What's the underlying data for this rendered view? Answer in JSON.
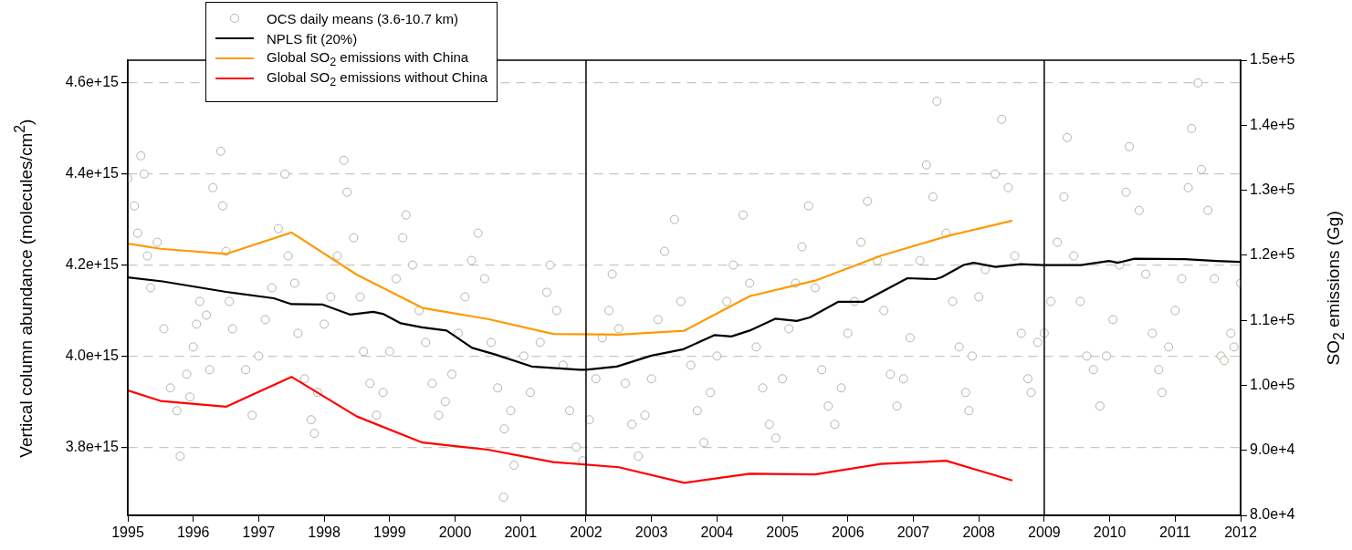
{
  "chart_data": {
    "type": "line",
    "ylabel": "Vertical column abundance (molecules/cm$^{2}$)",
    "y2label": "SO$_{2}$ emissions  (Gg)",
    "xlim": [
      1995,
      2012
    ],
    "xticks": [
      1995,
      1996,
      1997,
      1998,
      1999,
      2000,
      2001,
      2002,
      2003,
      2004,
      2005,
      2006,
      2007,
      2008,
      2009,
      2010,
      2011,
      2012
    ],
    "ylim": [
      3650000000000000.0,
      4650000000000000.0
    ],
    "yticks": [
      {
        "value": 3800000000000000.0,
        "label": "3.8e+15"
      },
      {
        "value": 4000000000000000.0,
        "label": "4.0e+15"
      },
      {
        "value": 4200000000000000.0,
        "label": "4.2e+15"
      },
      {
        "value": 4400000000000000.0,
        "label": "4.4e+15"
      },
      {
        "value": 4600000000000000.0,
        "label": "4.6e+15"
      }
    ],
    "y2lim": [
      80000,
      150000
    ],
    "y2ticks": [
      {
        "value": 80000,
        "label": "8.0e+4"
      },
      {
        "value": 90000,
        "label": "9.0e+4"
      },
      {
        "value": 100000,
        "label": "1.0e+5"
      },
      {
        "value": 110000,
        "label": "1.1e+5"
      },
      {
        "value": 120000,
        "label": "1.2e+5"
      },
      {
        "value": 130000,
        "label": "1.3e+5"
      },
      {
        "value": 140000,
        "label": "1.4e+5"
      },
      {
        "value": 150000,
        "label": "1.5e+5"
      }
    ],
    "grid": "y",
    "legend": "top left",
    "marker": "none",
    "line_style": "solid",
    "ref_lines": [
      {
        "axis": "x",
        "value": 2002,
        "color": "#000000"
      },
      {
        "axis": "x",
        "value": 2009,
        "color": "#000000"
      }
    ],
    "series": [
      {
        "name": "OCS daily means (3.6-10.7 km)",
        "type": "scatter",
        "marker": "circle",
        "color": "#b4b4a8",
        "x": [
          1995.0,
          1995.1,
          1995.15,
          1995.2,
          1995.25,
          1995.3,
          1995.35,
          1995.45,
          1995.55,
          1995.65,
          1995.75,
          1995.8,
          1995.9,
          1995.95,
          1996.0,
          1996.05,
          1996.1,
          1996.2,
          1996.25,
          1996.3,
          1996.42,
          1996.45,
          1996.5,
          1996.55,
          1996.6,
          1996.8,
          1996.9,
          1997.0,
          1997.1,
          1997.2,
          1997.3,
          1997.4,
          1997.45,
          1997.55,
          1997.6,
          1997.7,
          1997.8,
          1997.85,
          1997.9,
          1998.0,
          1998.1,
          1998.2,
          1998.3,
          1998.35,
          1998.45,
          1998.55,
          1998.6,
          1998.7,
          1998.8,
          1998.9,
          1999.0,
          1999.1,
          1999.2,
          1999.25,
          1999.35,
          1999.45,
          1999.55,
          1999.65,
          1999.75,
          1999.85,
          1999.95,
          2000.05,
          2000.15,
          2000.25,
          2000.35,
          2000.45,
          2000.55,
          2000.65,
          2000.74,
          2000.75,
          2000.85,
          2000.9,
          2001.05,
          2001.15,
          2001.3,
          2001.4,
          2001.45,
          2001.55,
          2001.65,
          2001.75,
          2001.85,
          2001.95,
          2002.05,
          2002.15,
          2002.25,
          2002.35,
          2002.4,
          2002.5,
          2002.6,
          2002.7,
          2002.8,
          2002.9,
          2003.0,
          2003.1,
          2003.2,
          2003.35,
          2003.45,
          2003.6,
          2003.7,
          2003.8,
          2003.9,
          2004.0,
          2004.15,
          2004.25,
          2004.4,
          2004.5,
          2004.6,
          2004.7,
          2004.8,
          2004.9,
          2005.0,
          2005.1,
          2005.2,
          2005.3,
          2005.4,
          2005.5,
          2005.6,
          2005.7,
          2005.8,
          2005.9,
          2006.0,
          2006.1,
          2006.2,
          2006.3,
          2006.45,
          2006.55,
          2006.65,
          2006.75,
          2006.85,
          2006.95,
          2007.1,
          2007.2,
          2007.3,
          2007.36,
          2007.5,
          2007.6,
          2007.7,
          2007.8,
          2007.85,
          2007.9,
          2008.0,
          2008.1,
          2008.25,
          2008.35,
          2008.45,
          2008.55,
          2008.65,
          2008.75,
          2008.8,
          2008.9,
          2009.0,
          2009.1,
          2009.2,
          2009.3,
          2009.35,
          2009.45,
          2009.55,
          2009.65,
          2009.75,
          2009.85,
          2009.95,
          2010.05,
          2010.15,
          2010.25,
          2010.3,
          2010.45,
          2010.55,
          2010.65,
          2010.75,
          2010.8,
          2010.9,
          2011.0,
          2011.1,
          2011.2,
          2011.25,
          2011.35,
          2011.4,
          2011.5,
          2011.6,
          2011.7,
          2011.75,
          2011.85,
          2011.9,
          2012.0
        ],
        "values": [
          4390000000000000.0,
          4330000000000000.0,
          4270000000000000.0,
          4440000000000000.0,
          4400000000000000.0,
          4220000000000000.0,
          4150000000000000.0,
          4250000000000000.0,
          4060000000000000.0,
          3930000000000000.0,
          3880000000000000.0,
          3780000000000000.0,
          3960000000000000.0,
          3910000000000000.0,
          4020000000000000.0,
          4070000000000000.0,
          4120000000000000.0,
          4090000000000000.0,
          3970000000000000.0,
          4370000000000000.0,
          4450000000000000.0,
          4330000000000000.0,
          4230000000000000.0,
          4120000000000000.0,
          4060000000000000.0,
          3970000000000000.0,
          3870000000000000.0,
          4000000000000000.0,
          4080000000000000.0,
          4150000000000000.0,
          4280000000000000.0,
          4400000000000000.0,
          4220000000000000.0,
          4160000000000000.0,
          4050000000000000.0,
          3950000000000000.0,
          3860000000000000.0,
          3830000000000000.0,
          3920000000000000.0,
          4070000000000000.0,
          4130000000000000.0,
          4220000000000000.0,
          4430000000000000.0,
          4360000000000000.0,
          4260000000000000.0,
          4130000000000000.0,
          4010000000000000.0,
          3940000000000000.0,
          3870000000000000.0,
          3920000000000000.0,
          4010000000000000.0,
          4170000000000000.0,
          4260000000000000.0,
          4310000000000000.0,
          4200000000000000.0,
          4100000000000000.0,
          4030000000000000.0,
          3940000000000000.0,
          3870000000000000.0,
          3900000000000000.0,
          3960000000000000.0,
          4050000000000000.0,
          4130000000000000.0,
          4210000000000000.0,
          4270000000000000.0,
          4170000000000000.0,
          4030000000000000.0,
          3930000000000000.0,
          3690000000000000.0,
          3840000000000000.0,
          3880000000000000.0,
          3760000000000000.0,
          4000000000000000.0,
          3920000000000000.0,
          4030000000000000.0,
          4140000000000000.0,
          4200000000000000.0,
          4100000000000000.0,
          3980000000000000.0,
          3880000000000000.0,
          3800000000000000.0,
          3770000000000000.0,
          3860000000000000.0,
          3950000000000000.0,
          4040000000000000.0,
          4100000000000000.0,
          4180000000000000.0,
          4060000000000000.0,
          3940000000000000.0,
          3850000000000000.0,
          3780000000000000.0,
          3870000000000000.0,
          3950000000000000.0,
          4080000000000000.0,
          4230000000000000.0,
          4300000000000000.0,
          4120000000000000.0,
          3980000000000000.0,
          3880000000000000.0,
          3810000000000000.0,
          3920000000000000.0,
          4000000000000000.0,
          4120000000000000.0,
          4200000000000000.0,
          4310000000000000.0,
          4160000000000000.0,
          4020000000000000.0,
          3930000000000000.0,
          3850000000000000.0,
          3820000000000000.0,
          3950000000000000.0,
          4060000000000000.0,
          4160000000000000.0,
          4240000000000000.0,
          4330000000000000.0,
          4150000000000000.0,
          3970000000000000.0,
          3890000000000000.0,
          3850000000000000.0,
          3930000000000000.0,
          4050000000000000.0,
          4120000000000000.0,
          4250000000000000.0,
          4340000000000000.0,
          4210000000000000.0,
          4100000000000000.0,
          3960000000000000.0,
          3890000000000000.0,
          3950000000000000.0,
          4040000000000000.0,
          4210000000000000.0,
          4420000000000000.0,
          4350000000000000.0,
          4560000000000000.0,
          4270000000000000.0,
          4120000000000000.0,
          4020000000000000.0,
          3920000000000000.0,
          3880000000000000.0,
          4000000000000000.0,
          4130000000000000.0,
          4190000000000000.0,
          4400000000000000.0,
          4520000000000000.0,
          4370000000000000.0,
          4220000000000000.0,
          4050000000000000.0,
          3950000000000000.0,
          3920000000000000.0,
          4030000000000000.0,
          4050000000000000.0,
          4120000000000000.0,
          4250000000000000.0,
          4350000000000000.0,
          4480000000000000.0,
          4220000000000000.0,
          4120000000000000.0,
          4000000000000000.0,
          3970000000000000.0,
          3890000000000000.0,
          4000000000000000.0,
          4080000000000000.0,
          4200000000000000.0,
          4360000000000000.0,
          4460000000000000.0,
          4320000000000000.0,
          4180000000000000.0,
          4050000000000000.0,
          3970000000000000.0,
          3920000000000000.0,
          4020000000000000.0,
          4100000000000000.0,
          4170000000000000.0,
          4370000000000000.0,
          4500000000000000.0,
          4600000000000000.0,
          4410000000000000.0,
          4320000000000000.0,
          4170000000000000.0,
          4000000000000000.0,
          3990000000000000.0,
          4050000000000000.0,
          4020000000000000.0,
          4160000000000000.0
        ]
      },
      {
        "name": "NPLS fit (20%)",
        "color": "#000000",
        "x": [
          1995.0,
          1995.53,
          1996.5,
          1997.23,
          1997.5,
          1997.98,
          1998.4,
          1998.75,
          1998.91,
          1999.17,
          1999.49,
          1999.87,
          2000.26,
          2000.6,
          2001.17,
          2001.9,
          2002.0,
          2002.47,
          2003.0,
          2003.49,
          2003.96,
          2004.22,
          2004.5,
          2004.89,
          2005.22,
          2005.42,
          2005.85,
          2006.23,
          2006.91,
          2007.34,
          2007.43,
          2007.77,
          2007.92,
          2008.26,
          2008.64,
          2008.98,
          2009.56,
          2009.99,
          2010.13,
          2010.38,
          2011.15,
          2011.63,
          2011.99
        ],
        "values": [
          4173000000000000.0,
          4164000000000000.0,
          4141000000000000.0,
          4127000000000000.0,
          4114000000000000.0,
          4113000000000000.0,
          4091000000000000.0,
          4097000000000000.0,
          4092000000000000.0,
          4072000000000000.0,
          4063000000000000.0,
          4056000000000000.0,
          4018000000000000.0,
          4004000000000000.0,
          3977000000000000.0,
          3970000000000000.0,
          3970000000000000.0,
          3977000000000000.0,
          4001000000000000.0,
          4015000000000000.0,
          4046000000000000.0,
          4043000000000000.0,
          4056000000000000.0,
          4082000000000000.0,
          4077000000000000.0,
          4085000000000000.0,
          4119000000000000.0,
          4119000000000000.0,
          4171000000000000.0,
          4169000000000000.0,
          4173000000000000.0,
          4200000000000000.0,
          4205000000000000.0,
          4196000000000000.0,
          4202000000000000.0,
          4200000000000000.0,
          4200000000000000.0,
          4209000000000000.0,
          4205000000000000.0,
          4214000000000000.0,
          4213000000000000.0,
          4209000000000000.0,
          4207000000000000.0
        ]
      },
      {
        "name": "Global SO$_{2}$ emissions with China",
        "axis": "y2",
        "color": "#ff9900",
        "x": [
          1995.0,
          1995.5,
          1996.5,
          1997.5,
          1998.5,
          1999.5,
          2000.5,
          2001.5,
          2002.5,
          2003.5,
          2004.5,
          2005.5,
          2006.5,
          2007.5,
          2008.5
        ],
        "values": [
          121800,
          121000,
          120200,
          123500,
          117000,
          111900,
          110200,
          107900,
          107800,
          108400,
          113700,
          116100,
          119900,
          122900,
          125300
        ]
      },
      {
        "name": "Global SO$_{2}$ emissions without China",
        "axis": "y2",
        "color": "#ff0000",
        "x": [
          1995.0,
          1995.5,
          1996.5,
          1997.5,
          1998.5,
          1999.5,
          2000.5,
          2001.5,
          2002.5,
          2003.5,
          2004.5,
          2005.5,
          2006.5,
          2007.5,
          2008.5
        ],
        "values": [
          99200,
          97600,
          96700,
          101300,
          95200,
          91200,
          90100,
          88200,
          87400,
          85000,
          86400,
          86300,
          87900,
          88400,
          85400
        ]
      }
    ]
  }
}
